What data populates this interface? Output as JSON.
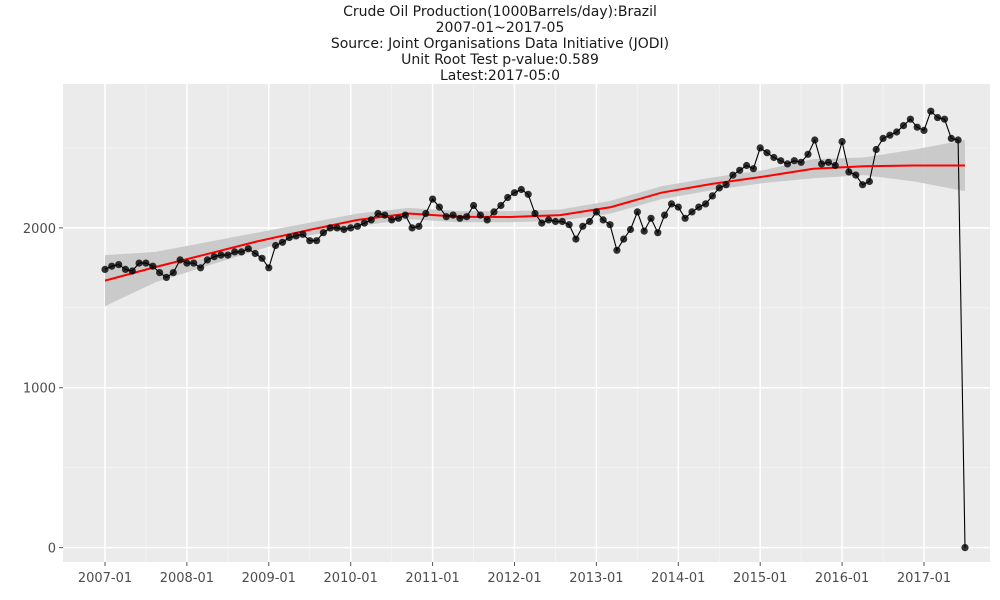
{
  "title_lines": [
    "Crude Oil Production(1000Barrels/day):Brazil",
    "2007-01~2017-05",
    "Source: Joint Organisations Data Initiative (JODI)",
    "Unit Root Test p-value:0.589",
    "Latest:2017-05:0"
  ],
  "chart_data": {
    "type": "line",
    "x_start": "2007-01",
    "x_tick_labels": [
      "2007-01",
      "2008-01",
      "2009-01",
      "2010-01",
      "2011-01",
      "2012-01",
      "2013-01",
      "2014-01",
      "2015-01",
      "2016-01",
      "2017-01"
    ],
    "y_ticks": [
      0,
      1000,
      2000
    ],
    "ylim": [
      -90,
      2900
    ],
    "series": [
      {
        "values": [
          1740,
          1760,
          1770,
          1740,
          1730,
          1780,
          1780,
          1760,
          1720,
          1690,
          1720,
          1800,
          1780,
          1780,
          1750,
          1800,
          1820,
          1830,
          1830,
          1850,
          1850,
          1870,
          1840,
          1810,
          1750,
          1890,
          1910,
          1940,
          1950,
          1960,
          1920,
          1920,
          1970,
          2000,
          2000,
          1990,
          2000,
          2010,
          2030,
          2050,
          2090,
          2080,
          2050,
          2060,
          2080,
          2000,
          2010,
          2090,
          2180,
          2130,
          2070,
          2080,
          2060,
          2070,
          2140,
          2080,
          2050,
          2100,
          2140,
          2190,
          2220,
          2240,
          2210,
          2090,
          2030,
          2050,
          2040,
          2040,
          2020,
          1930,
          2010,
          2040,
          2100,
          2050,
          2020,
          1860,
          1930,
          1990,
          2100,
          1980,
          2060,
          1970,
          2080,
          2150,
          2130,
          2060,
          2100,
          2130,
          2150,
          2200,
          2250,
          2270,
          2330,
          2360,
          2390,
          2370,
          2500,
          2470,
          2440,
          2420,
          2400,
          2420,
          2410,
          2460,
          2550,
          2400,
          2410,
          2390,
          2540,
          2350,
          2330,
          2270,
          2290,
          2490,
          2560,
          2580,
          2600,
          2640,
          2680,
          2630,
          2610,
          2730,
          2690,
          2680,
          2560,
          2550,
          0
        ]
      }
    ],
    "trend": {
      "color": "#ff0000",
      "values": [
        1670,
        1755,
        1835,
        1915,
        1985,
        2050,
        2090,
        2070,
        2068,
        2080,
        2130,
        2220,
        2275,
        2320,
        2370,
        2385,
        2390,
        2390
      ],
      "band": [
        [
          1510,
          1830
        ],
        [
          1660,
          1850
        ],
        [
          1760,
          1910
        ],
        [
          1860,
          1970
        ],
        [
          1950,
          2030
        ],
        [
          2010,
          2090
        ],
        [
          2055,
          2125
        ],
        [
          2035,
          2105
        ],
        [
          2035,
          2105
        ],
        [
          2045,
          2115
        ],
        [
          2090,
          2170
        ],
        [
          2180,
          2260
        ],
        [
          2235,
          2315
        ],
        [
          2280,
          2360
        ],
        [
          2310,
          2430
        ],
        [
          2330,
          2440
        ],
        [
          2290,
          2490
        ],
        [
          2230,
          2550
        ]
      ]
    },
    "point_color": "#000000",
    "band_color": "#c8c8c8",
    "panel_color": "#ebebeb",
    "grid": true
  }
}
